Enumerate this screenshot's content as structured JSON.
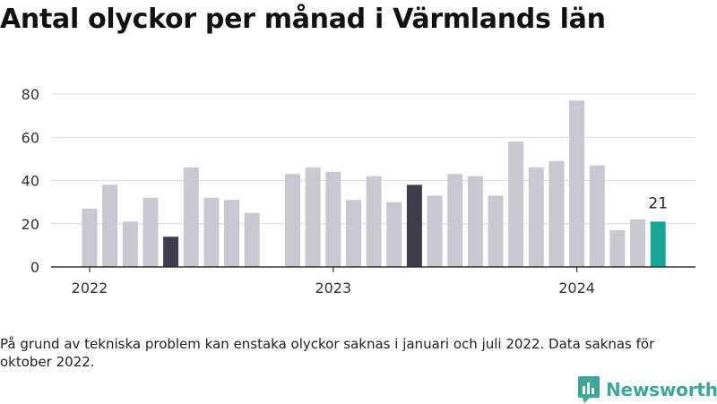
{
  "header": {
    "title": "Antal olyckor per månad i Värmlands län"
  },
  "chart_data": {
    "type": "bar",
    "title": "Antal olyckor per månad i Värmlands län",
    "xlabel": "",
    "ylabel": "",
    "ylim": [
      0,
      80
    ],
    "yticks": [
      0,
      20,
      40,
      60,
      80
    ],
    "xticks": [
      {
        "label": "2022",
        "month": "2022-01"
      },
      {
        "label": "2023",
        "month": "2023-01"
      },
      {
        "label": "2024",
        "month": "2024-01"
      }
    ],
    "grid": true,
    "legend": "none",
    "colors": {
      "default": "#c9c7d2",
      "highlight": "#3f3d4d",
      "latest": "#16a596",
      "grid": "#dcdcdc",
      "axis": "#333333"
    },
    "months": [
      "2022-01",
      "2022-02",
      "2022-03",
      "2022-04",
      "2022-05",
      "2022-06",
      "2022-07",
      "2022-08",
      "2022-09",
      "2022-10",
      "2022-11",
      "2022-12",
      "2023-01",
      "2023-02",
      "2023-03",
      "2023-04",
      "2023-05",
      "2023-06",
      "2023-07",
      "2023-08",
      "2023-09",
      "2023-10",
      "2023-11",
      "2023-12",
      "2024-01",
      "2024-02",
      "2024-03",
      "2024-04",
      "2024-05"
    ],
    "values": [
      27,
      38,
      21,
      32,
      14,
      46,
      32,
      31,
      25,
      null,
      43,
      46,
      44,
      31,
      42,
      30,
      38,
      33,
      43,
      42,
      33,
      58,
      46,
      49,
      77,
      47,
      17,
      22,
      21
    ],
    "highlights": {
      "2022-05": "highlight",
      "2023-05": "highlight",
      "2024-05": "latest"
    },
    "annotations": [
      {
        "month": "2024-05",
        "text": "21"
      }
    ]
  },
  "footer": {
    "note": "På grund av tekniska problem kan enstaka olyckor saknas i januari och juli 2022. Data saknas för oktober 2022.",
    "brand": "Newsworthy",
    "logo_icon": "newsworthy-logo-icon"
  }
}
